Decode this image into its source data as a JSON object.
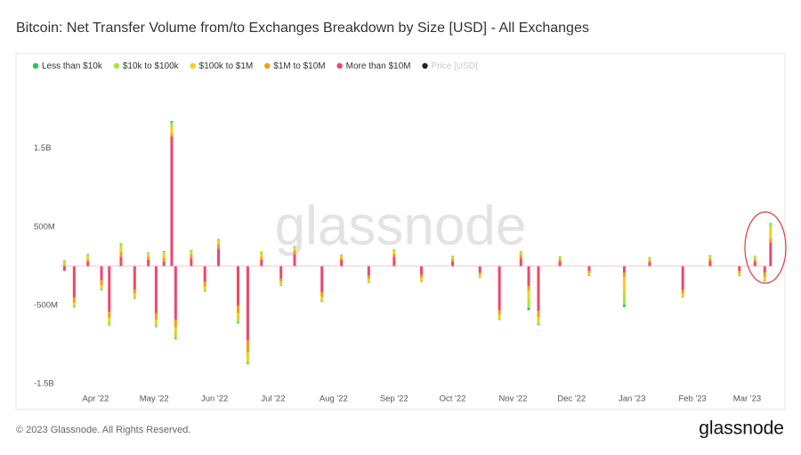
{
  "chart_data": {
    "type": "bar",
    "stacked": true,
    "title": "Bitcoin: Net Transfer Volume from/to Exchanges Breakdown by Size [USD] - All Exchanges",
    "watermark": "glassnode",
    "footer": "© 2023 Glassnode. All Rights Reserved.",
    "logo": "glassnode",
    "grid": false,
    "legend_position": "top",
    "inactive_legend": {
      "name": "Price [USD]",
      "color": "#222222"
    },
    "xlim": [
      "2022-03-14",
      "2023-03-14"
    ],
    "xticks": [
      {
        "value": "2022-04-01",
        "label": "Apr '22"
      },
      {
        "value": "2022-05-01",
        "label": "May '22"
      },
      {
        "value": "2022-06-01",
        "label": "Jun '22"
      },
      {
        "value": "2022-07-01",
        "label": "Jul '22"
      },
      {
        "value": "2022-08-01",
        "label": "Aug '22"
      },
      {
        "value": "2022-09-01",
        "label": "Sep '22"
      },
      {
        "value": "2022-10-01",
        "label": "Oct '22"
      },
      {
        "value": "2022-11-01",
        "label": "Nov '22"
      },
      {
        "value": "2022-12-01",
        "label": "Dec '22"
      },
      {
        "value": "2023-01-01",
        "label": "Jan '23"
      },
      {
        "value": "2023-02-01",
        "label": "Feb '23"
      },
      {
        "value": "2023-03-01",
        "label": "Mar '23"
      }
    ],
    "ylim": [
      -1600000000,
      2200000000
    ],
    "yticks": [
      {
        "value": -1500000000,
        "label": "-1.5B"
      },
      {
        "value": -500000000,
        "label": "-500M"
      },
      {
        "value": 500000000,
        "label": "500M"
      },
      {
        "value": 1500000000,
        "label": "1.5B"
      }
    ],
    "x": [
      "2022-03-16",
      "2022-03-21",
      "2022-03-28",
      "2022-04-04",
      "2022-04-08",
      "2022-04-14",
      "2022-04-21",
      "2022-04-28",
      "2022-05-02",
      "2022-05-06",
      "2022-05-10",
      "2022-05-12",
      "2022-05-20",
      "2022-05-27",
      "2022-06-03",
      "2022-06-13",
      "2022-06-18",
      "2022-06-25",
      "2022-07-05",
      "2022-07-12",
      "2022-07-26",
      "2022-08-05",
      "2022-08-19",
      "2022-09-01",
      "2022-09-15",
      "2022-10-01",
      "2022-10-15",
      "2022-10-25",
      "2022-11-05",
      "2022-11-09",
      "2022-11-14",
      "2022-11-25",
      "2022-12-10",
      "2022-12-28",
      "2023-01-10",
      "2023-01-27",
      "2023-02-10",
      "2023-02-25",
      "2023-03-05",
      "2023-03-10",
      "2023-03-13"
    ],
    "series": [
      {
        "name": "Less than $10k",
        "color": "#22c55e",
        "values": [
          5000000.0,
          -5000000.0,
          5000000.0,
          -5000000.0,
          -5000000.0,
          10000000.0,
          -5000000.0,
          5000000.0,
          -5000000.0,
          10000000.0,
          20000000.0,
          -10000000.0,
          5000000.0,
          -5000000.0,
          5000000.0,
          -10000000.0,
          -10000000.0,
          5000000.0,
          -5000000.0,
          5000000.0,
          -5000000.0,
          5000000.0,
          -5000000.0,
          5000000.0,
          -5000000.0,
          5000000.0,
          -5000000.0,
          -5000000.0,
          5000000.0,
          -30000000.0,
          -10000000.0,
          5000000.0,
          -5000000.0,
          -30000000.0,
          5000000.0,
          -5000000.0,
          5000000.0,
          -5000000.0,
          5000000.0,
          -5000000.0,
          10000000.0
        ]
      },
      {
        "name": "$10k to $100k",
        "color": "#a3e635",
        "values": [
          20000000.0,
          -20000000.0,
          30000000.0,
          -20000000.0,
          -30000000.0,
          40000000.0,
          -20000000.0,
          20000000.0,
          -30000000.0,
          30000000.0,
          60000000.0,
          -60000000.0,
          20000000.0,
          -20000000.0,
          20000000.0,
          -40000000.0,
          -40000000.0,
          20000000.0,
          -15000000.0,
          20000000.0,
          -20000000.0,
          15000000.0,
          -15000000.0,
          15000000.0,
          -15000000.0,
          15000000.0,
          -10000000.0,
          -20000000.0,
          15000000.0,
          -100000000.0,
          -30000000.0,
          10000000.0,
          -10000000.0,
          -150000000.0,
          15000000.0,
          -15000000.0,
          15000000.0,
          -10000000.0,
          15000000.0,
          -20000000.0,
          40000000.0
        ]
      },
      {
        "name": "$100k to $1M",
        "color": "#facc15",
        "values": [
          30000000.0,
          -40000000.0,
          40000000.0,
          -40000000.0,
          -60000000.0,
          60000000.0,
          -40000000.0,
          30000000.0,
          -60000000.0,
          40000000.0,
          80000000.0,
          -80000000.0,
          30000000.0,
          -40000000.0,
          40000000.0,
          -80000000.0,
          -100000000.0,
          40000000.0,
          -30000000.0,
          30000000.0,
          -40000000.0,
          20000000.0,
          -30000000.0,
          30000000.0,
          -30000000.0,
          20000000.0,
          -20000000.0,
          -40000000.0,
          30000000.0,
          -120000000.0,
          -60000000.0,
          20000000.0,
          -20000000.0,
          -200000000.0,
          20000000.0,
          -30000000.0,
          20000000.0,
          -20000000.0,
          20000000.0,
          -40000000.0,
          150000000.0
        ]
      },
      {
        "name": "$1M to $10M",
        "color": "#f59e0b",
        "values": [
          20000000.0,
          -60000000.0,
          20000000.0,
          -60000000.0,
          -80000000.0,
          60000000.0,
          -50000000.0,
          40000000.0,
          -80000000.0,
          50000000.0,
          40000000.0,
          -100000000.0,
          50000000.0,
          -60000000.0,
          60000000.0,
          -100000000.0,
          -150000000.0,
          40000000.0,
          -40000000.0,
          50000000.0,
          -60000000.0,
          30000000.0,
          -40000000.0,
          40000000.0,
          -40000000.0,
          30000000.0,
          -30000000.0,
          -60000000.0,
          40000000.0,
          -60000000.0,
          -80000000.0,
          30000000.0,
          -30000000.0,
          -60000000.0,
          25000000.0,
          -50000000.0,
          30000000.0,
          -30000000.0,
          30000000.0,
          -50000000.0,
          50000000.0
        ]
      },
      {
        "name": "More than $10M",
        "color": "#f0476a",
        "values": [
          -60000000.0,
          -400000000.0,
          60000000.0,
          -180000000.0,
          -580000000.0,
          120000000.0,
          -300000000.0,
          80000000.0,
          -600000000.0,
          60000000.0,
          1650000000.0,
          -680000000.0,
          100000000.0,
          -200000000.0,
          220000000.0,
          -500000000.0,
          -950000000.0,
          80000000.0,
          -160000000.0,
          150000000.0,
          -330000000.0,
          80000000.0,
          -120000000.0,
          120000000.0,
          -110000000.0,
          60000000.0,
          -80000000.0,
          -560000000.0,
          100000000.0,
          -250000000.0,
          -570000000.0,
          60000000.0,
          -60000000.0,
          -80000000.0,
          50000000.0,
          -300000000.0,
          70000000.0,
          -60000000.0,
          60000000.0,
          -80000000.0,
          300000000.0
        ]
      }
    ]
  }
}
